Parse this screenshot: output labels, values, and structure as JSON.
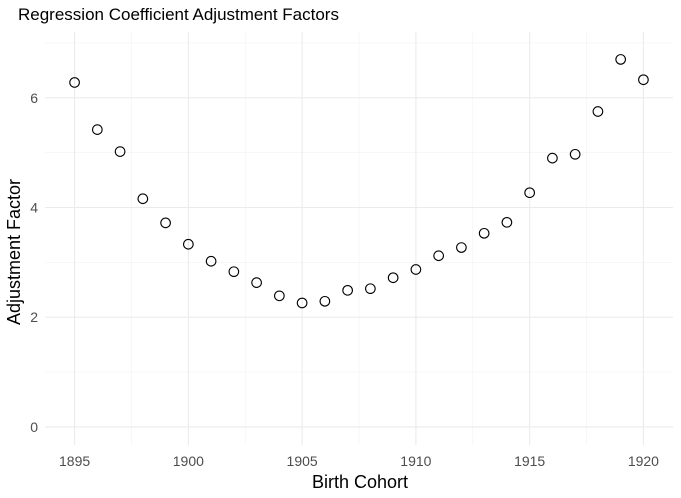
{
  "chart_data": {
    "type": "scatter",
    "title": "Regression Coefficient Adjustment Factors",
    "xlabel": "Birth Cohort",
    "ylabel": "Adjustment Factor",
    "x": [
      1895,
      1896,
      1897,
      1898,
      1899,
      1900,
      1901,
      1902,
      1903,
      1904,
      1905,
      1906,
      1907,
      1908,
      1909,
      1910,
      1911,
      1912,
      1913,
      1914,
      1915,
      1916,
      1917,
      1918,
      1919,
      1920
    ],
    "y": [
      6.28,
      5.42,
      5.02,
      4.16,
      3.72,
      3.33,
      3.02,
      2.83,
      2.63,
      2.39,
      2.26,
      2.29,
      2.49,
      2.52,
      2.72,
      2.87,
      3.12,
      3.27,
      3.53,
      3.73,
      4.27,
      4.9,
      4.97,
      5.75,
      6.7,
      6.33
    ],
    "xticks": [
      1895,
      1900,
      1905,
      1910,
      1915,
      1920
    ],
    "xtick_labels": [
      "1895",
      "1900",
      "1905",
      "1910",
      "1915",
      "1920"
    ],
    "yticks": [
      0,
      2,
      4,
      6
    ],
    "ytick_labels": [
      "0",
      "2",
      "4",
      "6"
    ],
    "xlim": [
      1893.7,
      1921.3
    ],
    "ylim": [
      -0.33,
      7.2
    ],
    "grid": true,
    "marker": "open-circle",
    "colors": {
      "background": "#ffffff",
      "grid_major": "#ebebeb",
      "grid_minor": "#f2f2f2",
      "tick_text": "#4d4d4d",
      "point_stroke": "#000000"
    }
  }
}
